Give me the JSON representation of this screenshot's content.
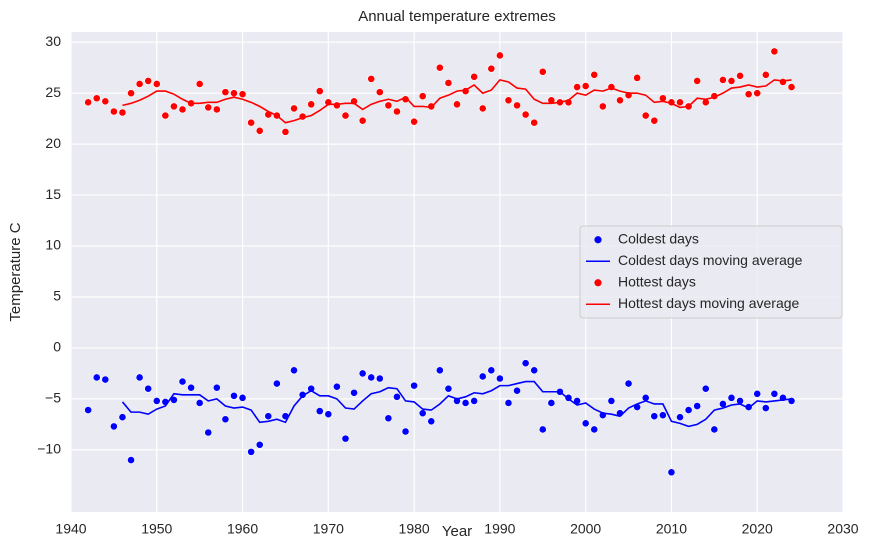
{
  "chart_data": {
    "type": "line",
    "title": "Annual temperature extremes",
    "x_label": "Year",
    "y_label": "Temperature C",
    "x": [
      1942,
      1943,
      1944,
      1945,
      1946,
      1947,
      1948,
      1949,
      1950,
      1951,
      1952,
      1953,
      1954,
      1955,
      1956,
      1957,
      1958,
      1959,
      1960,
      1961,
      1962,
      1963,
      1964,
      1965,
      1966,
      1967,
      1968,
      1969,
      1970,
      1971,
      1972,
      1973,
      1974,
      1975,
      1976,
      1977,
      1978,
      1979,
      1980,
      1981,
      1982,
      1983,
      1984,
      1985,
      1986,
      1987,
      1988,
      1989,
      1990,
      1991,
      1992,
      1993,
      1994,
      1995,
      1996,
      1997,
      1998,
      1999,
      2000,
      2001,
      2002,
      2003,
      2004,
      2005,
      2006,
      2007,
      2008,
      2009,
      2010,
      2011,
      2012,
      2013,
      2014,
      2015,
      2016,
      2017,
      2018,
      2019,
      2020,
      2021,
      2022,
      2023,
      2024
    ],
    "series": [
      {
        "name": "Coldest days",
        "type": "scatter",
        "color": "#0000ff",
        "values": [
          -6.1,
          -2.9,
          -3.1,
          -7.7,
          -6.8,
          -11.0,
          -2.9,
          -4.0,
          -5.2,
          -5.3,
          -5.1,
          -3.3,
          -3.9,
          -5.4,
          -8.3,
          -3.9,
          -7.0,
          -4.7,
          -4.9,
          -10.2,
          -9.5,
          -6.7,
          -3.5,
          -6.7,
          -2.2,
          -4.6,
          -4.0,
          -6.2,
          -6.5,
          -3.8,
          -8.9,
          -4.4,
          -2.5,
          -2.9,
          -3.0,
          -6.9,
          -4.8,
          -8.2,
          -3.7,
          -6.4,
          -7.2,
          -2.2,
          -4.0,
          -5.2,
          -5.4,
          -5.2,
          -2.8,
          -2.2,
          -3.0,
          -5.4,
          -4.2,
          -1.5,
          -2.2,
          -8.0,
          -5.4,
          -4.3,
          -4.9,
          -5.2,
          -7.4,
          -8.0,
          -6.6,
          -5.2,
          -6.4,
          -3.5,
          -5.8,
          -4.9,
          -6.7,
          -6.6,
          -12.2,
          -6.8,
          -6.1,
          -5.7,
          -4.0,
          -8.0,
          -5.5,
          -4.9,
          -5.2,
          -5.8,
          -4.5,
          -5.9,
          -4.5,
          -4.9,
          -5.2
        ]
      },
      {
        "name": "Coldest days moving average",
        "type": "line",
        "color": "#0000ff",
        "values": [
          null,
          null,
          null,
          null,
          -5.3,
          -6.3,
          -6.3,
          -6.5,
          -6.0,
          -5.7,
          -4.5,
          -4.6,
          -4.6,
          -4.6,
          -5.2,
          -5.0,
          -5.7,
          -5.9,
          -5.8,
          -6.1,
          -7.3,
          -7.2,
          -7.0,
          -7.3,
          -5.7,
          -4.7,
          -4.2,
          -4.7,
          -4.7,
          -5.0,
          -5.9,
          -6.0,
          -5.2,
          -4.5,
          -4.3,
          -3.9,
          -4.0,
          -5.2,
          -5.3,
          -6.0,
          -6.1,
          -5.5,
          -4.7,
          -5.0,
          -4.8,
          -4.4,
          -4.5,
          -4.2,
          -3.7,
          -3.7,
          -3.5,
          -3.3,
          -3.3,
          -4.3,
          -4.3,
          -4.3,
          -5.0,
          -5.6,
          -5.4,
          -6.0,
          -6.4,
          -6.5,
          -6.7,
          -5.9,
          -5.5,
          -5.2,
          -5.5,
          -5.5,
          -7.2,
          -7.4,
          -7.7,
          -7.5,
          -7.0,
          -6.1,
          -5.9,
          -5.6,
          -5.5,
          -5.9,
          -5.2,
          -5.3,
          -5.2,
          -5.1,
          -5.0
        ]
      },
      {
        "name": "Hottest days",
        "type": "scatter",
        "color": "#ff0000",
        "values": [
          24.1,
          24.5,
          24.2,
          23.2,
          23.1,
          25.0,
          25.9,
          26.2,
          25.9,
          22.8,
          23.7,
          23.4,
          24.0,
          25.9,
          23.6,
          23.4,
          25.1,
          25.0,
          24.9,
          22.1,
          21.3,
          22.9,
          22.8,
          21.2,
          23.5,
          22.7,
          23.9,
          25.2,
          24.1,
          23.8,
          22.8,
          24.2,
          22.3,
          26.4,
          25.1,
          23.8,
          23.2,
          24.4,
          22.2,
          24.7,
          23.7,
          27.5,
          26.0,
          23.9,
          25.2,
          26.6,
          23.5,
          27.4,
          28.7,
          24.3,
          23.8,
          22.9,
          22.1,
          27.1,
          24.3,
          24.1,
          24.1,
          25.6,
          25.7,
          26.8,
          23.7,
          25.6,
          24.3,
          24.8,
          26.5,
          22.8,
          22.3,
          24.5,
          24.1,
          24.1,
          23.7,
          26.2,
          24.1,
          24.7,
          26.3,
          26.2,
          26.7,
          24.9,
          25.0,
          26.8,
          29.1,
          26.1,
          25.6
        ]
      },
      {
        "name": "Hottest days moving average",
        "type": "line",
        "color": "#ff0000",
        "values": [
          null,
          null,
          null,
          null,
          23.8,
          24.0,
          24.3,
          24.7,
          25.2,
          25.2,
          24.9,
          24.4,
          24.0,
          24.0,
          24.1,
          24.1,
          24.4,
          24.6,
          24.4,
          24.1,
          23.7,
          23.2,
          22.8,
          22.1,
          22.3,
          22.6,
          22.8,
          23.3,
          23.9,
          23.9,
          24.0,
          24.0,
          23.4,
          23.9,
          24.2,
          24.4,
          24.2,
          24.6,
          23.7,
          23.7,
          23.6,
          24.5,
          24.8,
          25.2,
          25.3,
          25.8,
          25.0,
          25.3,
          26.3,
          26.1,
          25.5,
          25.4,
          24.4,
          24.0,
          24.0,
          24.1,
          24.3,
          25.0,
          24.8,
          25.3,
          25.2,
          25.5,
          25.2,
          25.0,
          25.0,
          24.8,
          24.1,
          24.2,
          24.0,
          23.6,
          23.7,
          24.5,
          24.4,
          24.6,
          25.0,
          25.5,
          25.6,
          25.8,
          25.6,
          25.7,
          26.3,
          26.2,
          26.3
        ]
      }
    ],
    "xlim": [
      1940,
      2030
    ],
    "xticks": [
      1940,
      1950,
      1960,
      1970,
      1980,
      1990,
      2000,
      2010,
      2020,
      2030
    ],
    "ylim": [
      -16.1,
      31.0
    ],
    "yticks": [
      {
        "value": -10,
        "label": "−10"
      },
      {
        "value": -5,
        "label": "−5"
      },
      0,
      5,
      10,
      15,
      20,
      25,
      30
    ],
    "grid": true,
    "legend": "center right"
  }
}
